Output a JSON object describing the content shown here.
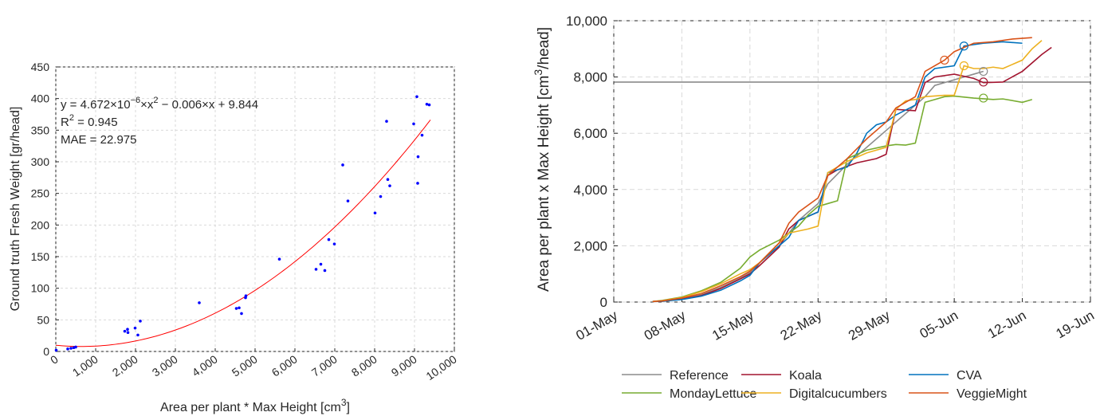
{
  "chart_data": [
    {
      "type": "scatter",
      "xlabel": "Area per plant * Max Height [cm",
      "xlabel_sup": "3",
      "xlabel_end": "]",
      "ylabel": "Ground truth Fresh Weight [gr/head]",
      "xlim": [
        0,
        10000
      ],
      "ylim": [
        0,
        450
      ],
      "x_ticks": [
        0,
        1000,
        2000,
        3000,
        4000,
        5000,
        6000,
        7000,
        8000,
        9000,
        10000
      ],
      "x_tick_labels": [
        "0",
        "1,000",
        "2,000",
        "3,000",
        "4,000",
        "5,000",
        "6,000",
        "7,000",
        "8,000",
        "9,000",
        "10,000"
      ],
      "y_ticks": [
        0,
        50,
        100,
        150,
        200,
        250,
        300,
        350,
        400,
        450
      ],
      "y_tick_labels": [
        "0",
        "50",
        "100",
        "150",
        "200",
        "250",
        "300",
        "350",
        "400",
        "450"
      ],
      "grid": true,
      "annotation": {
        "eq_prefix": "y = 4.672×10",
        "eq_sup": "−6",
        "eq_mid": "×x",
        "eq_sup2": "2",
        "eq_suffix": " − 0.006×x + 9.844",
        "r2_prefix": "R",
        "r2_sup": "2",
        "r2_suffix": " = 0.945",
        "mae": "MAE = 22.975"
      },
      "fit": {
        "a": 4.672e-06,
        "b": -0.006,
        "c": 9.844,
        "x_range": [
          0,
          9400
        ],
        "color": "#ff0000"
      },
      "points_color": "#0000ff",
      "points": [
        [
          10,
          2
        ],
        [
          300,
          4
        ],
        [
          380,
          5
        ],
        [
          450,
          6
        ],
        [
          500,
          7
        ],
        [
          1730,
          32
        ],
        [
          1800,
          35
        ],
        [
          1810,
          30
        ],
        [
          1990,
          37
        ],
        [
          2060,
          26
        ],
        [
          2120,
          48
        ],
        [
          3600,
          77
        ],
        [
          4530,
          68
        ],
        [
          4600,
          69
        ],
        [
          4660,
          60
        ],
        [
          4760,
          85
        ],
        [
          4770,
          88
        ],
        [
          5610,
          146
        ],
        [
          6530,
          130
        ],
        [
          6650,
          138
        ],
        [
          6750,
          128
        ],
        [
          6850,
          177
        ],
        [
          6990,
          170
        ],
        [
          7200,
          295
        ],
        [
          7330,
          238
        ],
        [
          8010,
          219
        ],
        [
          8150,
          245
        ],
        [
          8300,
          364
        ],
        [
          8330,
          272
        ],
        [
          8380,
          262
        ],
        [
          8980,
          360
        ],
        [
          9060,
          403
        ],
        [
          9080,
          266
        ],
        [
          9090,
          308
        ],
        [
          9190,
          342
        ],
        [
          9310,
          391
        ],
        [
          9370,
          390
        ]
      ]
    },
    {
      "type": "line",
      "ylabel": "Area per plant x Max Height [cm",
      "ylabel_sup": "3",
      "ylabel_end": "/head]",
      "xlim": [
        0,
        49
      ],
      "ylim": [
        0,
        10000
      ],
      "x_ticks": [
        0,
        7,
        14,
        21,
        28,
        35,
        42,
        49
      ],
      "x_tick_labels": [
        "01-May",
        "08-May",
        "15-May",
        "22-May",
        "29-May",
        "05-Jun",
        "12-Jun",
        "19-Jun"
      ],
      "y_ticks": [
        0,
        2000,
        4000,
        6000,
        8000,
        10000
      ],
      "y_tick_labels": [
        "0",
        "2,000",
        "4,000",
        "6,000",
        "8,000",
        "10,000"
      ],
      "grid": true,
      "hline": {
        "y": 7820,
        "color": "#404040"
      },
      "legend": {
        "position": "bottom"
      },
      "series": [
        {
          "name": "Reference",
          "color": "#8c8c8c",
          "points": [
            [
              4,
              20
            ],
            [
              5,
              40
            ],
            [
              7,
              110
            ],
            [
              9,
              260
            ],
            [
              11,
              520
            ],
            [
              13,
              850
            ],
            [
              14,
              1050
            ],
            [
              15,
              1400
            ],
            [
              17,
              2000
            ],
            [
              19,
              2900
            ],
            [
              20,
              3200
            ],
            [
              21,
              3500
            ],
            [
              22,
              4200
            ],
            [
              24,
              4900
            ],
            [
              26,
              5500
            ],
            [
              28,
              6100
            ],
            [
              30,
              6700
            ],
            [
              31,
              7000
            ],
            [
              32,
              7300
            ],
            [
              33,
              7700
            ],
            [
              35,
              7900
            ],
            [
              37,
              8100
            ],
            [
              38,
              8200
            ]
          ],
          "markers": [
            [
              38,
              8200
            ]
          ]
        },
        {
          "name": "Koala",
          "color": "#a2142f",
          "points": [
            [
              4,
              20
            ],
            [
              5,
              30
            ],
            [
              7,
              100
            ],
            [
              9,
              230
            ],
            [
              11,
              480
            ],
            [
              13,
              820
            ],
            [
              14,
              1000
            ],
            [
              15,
              1300
            ],
            [
              17,
              1950
            ],
            [
              18,
              2600
            ],
            [
              19,
              2900
            ],
            [
              21,
              3200
            ],
            [
              22,
              4500
            ],
            [
              23,
              4700
            ],
            [
              25,
              4950
            ],
            [
              27,
              5100
            ],
            [
              28,
              5250
            ],
            [
              29,
              6850
            ],
            [
              31,
              6800
            ],
            [
              32,
              7800
            ],
            [
              33,
              8000
            ],
            [
              35,
              8100
            ],
            [
              37,
              7950
            ],
            [
              38,
              7800
            ],
            [
              40,
              7820
            ],
            [
              42,
              8200
            ],
            [
              44,
              8800
            ],
            [
              45,
              9050
            ]
          ],
          "markers": [
            [
              38,
              7820
            ]
          ]
        },
        {
          "name": "CVA",
          "color": "#0072bd",
          "points": [
            [
              4,
              20
            ],
            [
              5,
              30
            ],
            [
              7,
              90
            ],
            [
              9,
              210
            ],
            [
              11,
              420
            ],
            [
              13,
              750
            ],
            [
              14,
              950
            ],
            [
              15,
              1400
            ],
            [
              17,
              2000
            ],
            [
              18,
              2300
            ],
            [
              19,
              2900
            ],
            [
              21,
              3200
            ],
            [
              22,
              4600
            ],
            [
              24,
              4800
            ],
            [
              25,
              5300
            ],
            [
              26,
              6000
            ],
            [
              27,
              6300
            ],
            [
              28,
              6400
            ],
            [
              29,
              6650
            ],
            [
              31,
              7000
            ],
            [
              32,
              8000
            ],
            [
              33,
              8300
            ],
            [
              35,
              8400
            ],
            [
              36,
              9100
            ],
            [
              38,
              9200
            ],
            [
              40,
              9250
            ],
            [
              42,
              9200
            ]
          ],
          "markers": [
            [
              36,
              9100
            ]
          ]
        },
        {
          "name": "MondayLettuce",
          "color": "#77ac30",
          "points": [
            [
              4,
              20
            ],
            [
              5,
              60
            ],
            [
              7,
              180
            ],
            [
              9,
              400
            ],
            [
              11,
              700
            ],
            [
              13,
              1200
            ],
            [
              14,
              1600
            ],
            [
              15,
              1850
            ],
            [
              17,
              2200
            ],
            [
              19,
              2700
            ],
            [
              20,
              3100
            ],
            [
              21,
              3400
            ],
            [
              22,
              3500
            ],
            [
              23,
              3600
            ],
            [
              24,
              5100
            ],
            [
              26,
              5400
            ],
            [
              28,
              5550
            ],
            [
              29,
              5600
            ],
            [
              30,
              5580
            ],
            [
              31,
              5650
            ],
            [
              32,
              7100
            ],
            [
              33,
              7200
            ],
            [
              34,
              7300
            ],
            [
              35,
              7320
            ],
            [
              37,
              7250
            ],
            [
              39,
              7200
            ],
            [
              40,
              7220
            ],
            [
              42,
              7100
            ],
            [
              43,
              7200
            ]
          ],
          "markers": [
            [
              38,
              7250
            ]
          ]
        },
        {
          "name": "Digitalcucumbers",
          "color": "#edb120",
          "points": [
            [
              4,
              20
            ],
            [
              5,
              50
            ],
            [
              7,
              160
            ],
            [
              9,
              370
            ],
            [
              11,
              650
            ],
            [
              13,
              1000
            ],
            [
              14,
              1150
            ],
            [
              15,
              1400
            ],
            [
              17,
              2100
            ],
            [
              18,
              2450
            ],
            [
              20,
              2600
            ],
            [
              21,
              2700
            ],
            [
              22,
              4600
            ],
            [
              24,
              5000
            ],
            [
              26,
              5300
            ],
            [
              28,
              5500
            ],
            [
              29,
              6850
            ],
            [
              30,
              7150
            ],
            [
              31,
              7200
            ],
            [
              32,
              7300
            ],
            [
              34,
              7350
            ],
            [
              35,
              7350
            ],
            [
              36,
              8400
            ],
            [
              37,
              8300
            ],
            [
              38,
              8300
            ],
            [
              39,
              8350
            ],
            [
              40,
              8300
            ],
            [
              42,
              8600
            ],
            [
              43,
              9000
            ],
            [
              44,
              9300
            ]
          ],
          "markers": [
            [
              36,
              8400
            ]
          ]
        },
        {
          "name": "VeggieMight",
          "color": "#d95319",
          "points": [
            [
              4,
              20
            ],
            [
              5,
              40
            ],
            [
              7,
              140
            ],
            [
              9,
              300
            ],
            [
              11,
              580
            ],
            [
              13,
              900
            ],
            [
              14,
              1100
            ],
            [
              15,
              1400
            ],
            [
              17,
              2100
            ],
            [
              18,
              2800
            ],
            [
              19,
              3200
            ],
            [
              21,
              3700
            ],
            [
              22,
              4500
            ],
            [
              24,
              5100
            ],
            [
              26,
              5800
            ],
            [
              28,
              6400
            ],
            [
              29,
              6900
            ],
            [
              31,
              7300
            ],
            [
              32,
              8200
            ],
            [
              34,
              8600
            ],
            [
              35,
              8900
            ],
            [
              37,
              9200
            ],
            [
              39,
              9250
            ],
            [
              40,
              9300
            ],
            [
              41,
              9350
            ],
            [
              43,
              9400
            ]
          ],
          "markers": [
            [
              34,
              8600
            ]
          ]
        }
      ]
    }
  ]
}
